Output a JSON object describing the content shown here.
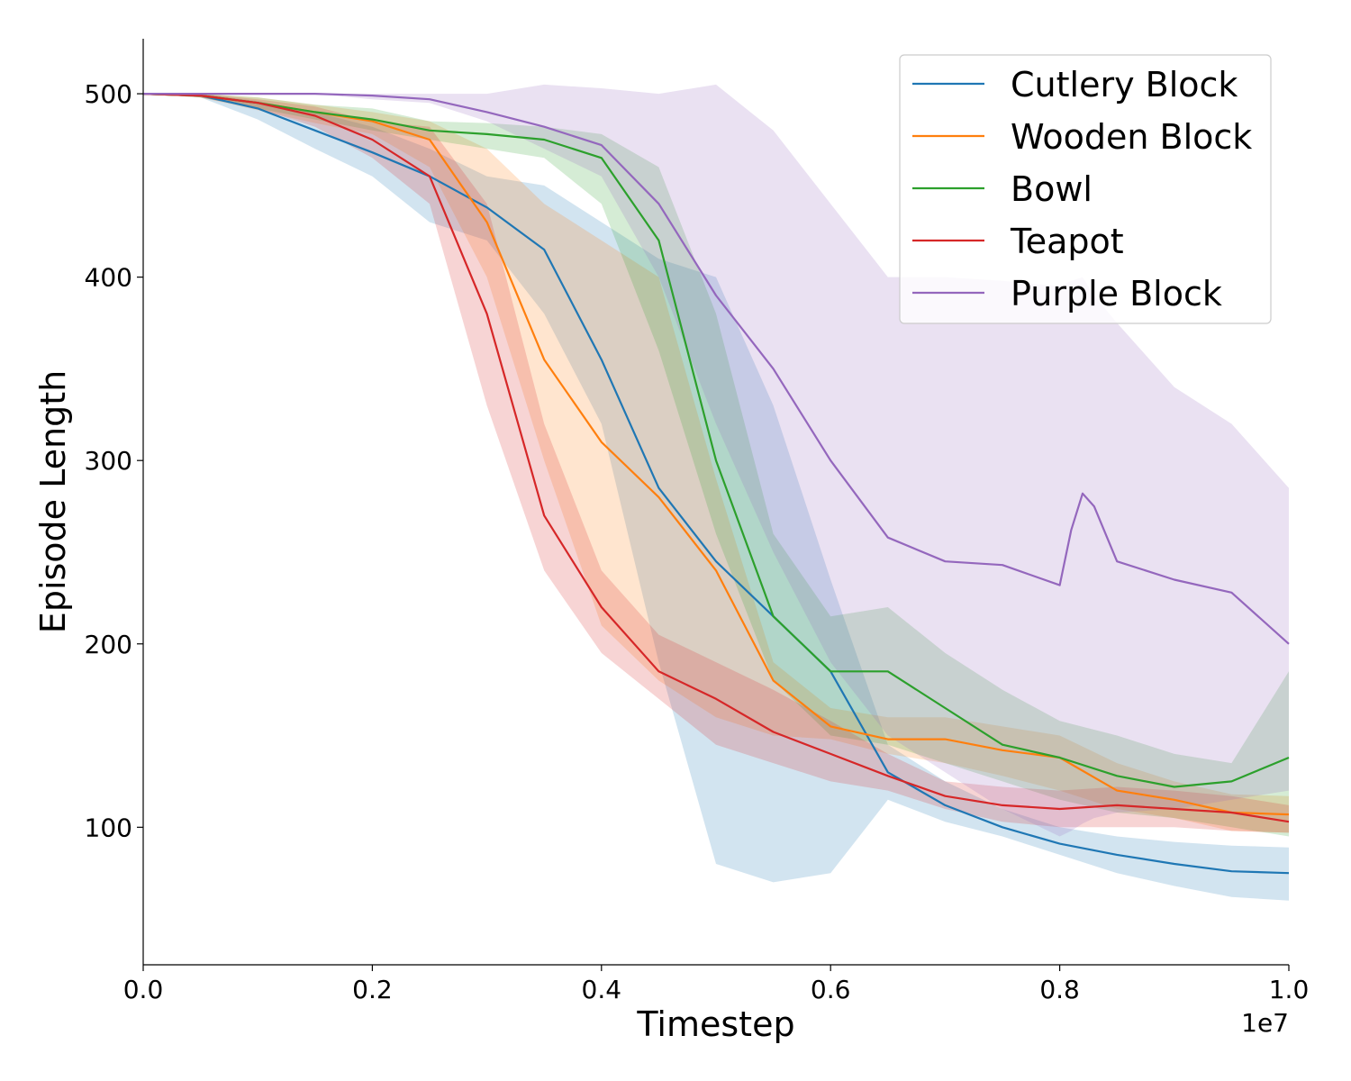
{
  "chart_data": {
    "type": "line",
    "title": "",
    "xlabel": "Timestep",
    "ylabel": "Episode Length",
    "x_offset_label": "1e7",
    "xlim": [
      0.0,
      1.0
    ],
    "ylim": [
      25,
      530
    ],
    "x_ticks": [
      "0.0",
      "0.2",
      "0.4",
      "0.6",
      "0.8",
      "1.0"
    ],
    "y_ticks": [
      "100",
      "200",
      "300",
      "400",
      "500"
    ],
    "grid": false,
    "legend_position": "top-right",
    "shaded_band": true,
    "series": [
      {
        "name": "Cutlery Block",
        "color": "#1f77b4",
        "x": [
          0.0,
          0.05,
          0.1,
          0.15,
          0.2,
          0.25,
          0.3,
          0.35,
          0.4,
          0.45,
          0.5,
          0.55,
          0.6,
          0.65,
          0.7,
          0.75,
          0.8,
          0.85,
          0.9,
          0.95,
          1.0
        ],
        "mean": [
          500,
          499,
          492,
          480,
          468,
          455,
          438,
          415,
          355,
          285,
          245,
          215,
          185,
          130,
          112,
          100,
          91,
          85,
          80,
          76,
          75
        ],
        "lower": [
          500,
          498,
          486,
          470,
          455,
          430,
          420,
          380,
          320,
          190,
          80,
          70,
          75,
          115,
          103,
          95,
          85,
          75,
          68,
          62,
          60
        ],
        "upper": [
          500,
          500,
          496,
          490,
          482,
          470,
          455,
          450,
          430,
          410,
          400,
          330,
          235,
          145,
          125,
          110,
          100,
          95,
          92,
          90,
          89
        ]
      },
      {
        "name": "Wooden Block",
        "color": "#ff7f0e",
        "x": [
          0.0,
          0.05,
          0.1,
          0.15,
          0.2,
          0.25,
          0.3,
          0.35,
          0.4,
          0.45,
          0.5,
          0.55,
          0.6,
          0.65,
          0.7,
          0.75,
          0.8,
          0.85,
          0.9,
          0.95,
          1.0
        ],
        "mean": [
          500,
          499,
          495,
          490,
          485,
          475,
          430,
          355,
          310,
          280,
          240,
          180,
          155,
          148,
          148,
          142,
          138,
          120,
          115,
          108,
          107
        ],
        "lower": [
          500,
          498,
          491,
          484,
          478,
          460,
          400,
          300,
          210,
          180,
          160,
          150,
          148,
          140,
          135,
          128,
          120,
          110,
          105,
          98,
          97
        ],
        "upper": [
          500,
          500,
          498,
          494,
          490,
          485,
          470,
          440,
          420,
          400,
          290,
          190,
          165,
          160,
          160,
          155,
          150,
          135,
          125,
          118,
          117
        ]
      },
      {
        "name": "Bowl",
        "color": "#2ca02c",
        "x": [
          0.0,
          0.05,
          0.1,
          0.15,
          0.2,
          0.25,
          0.3,
          0.35,
          0.4,
          0.45,
          0.5,
          0.55,
          0.6,
          0.65,
          0.7,
          0.75,
          0.8,
          0.85,
          0.9,
          0.95,
          1.0
        ],
        "mean": [
          500,
          499,
          495,
          490,
          486,
          480,
          478,
          475,
          465,
          420,
          300,
          215,
          185,
          185,
          165,
          145,
          138,
          128,
          122,
          125,
          138
        ],
        "lower": [
          500,
          498,
          492,
          486,
          480,
          475,
          470,
          465,
          440,
          360,
          260,
          180,
          150,
          145,
          135,
          125,
          115,
          108,
          105,
          100,
          95
        ],
        "upper": [
          500,
          500,
          498,
          494,
          492,
          485,
          484,
          482,
          478,
          460,
          380,
          260,
          215,
          220,
          195,
          175,
          158,
          150,
          140,
          135,
          185
        ]
      },
      {
        "name": "Teapot",
        "color": "#d62728",
        "x": [
          0.0,
          0.05,
          0.1,
          0.15,
          0.2,
          0.25,
          0.3,
          0.35,
          0.4,
          0.45,
          0.5,
          0.55,
          0.6,
          0.65,
          0.7,
          0.75,
          0.8,
          0.85,
          0.9,
          0.95,
          1.0
        ],
        "mean": [
          500,
          499,
          495,
          488,
          475,
          455,
          380,
          270,
          220,
          185,
          170,
          152,
          140,
          128,
          117,
          112,
          110,
          112,
          110,
          108,
          103
        ],
        "lower": [
          500,
          498,
          492,
          482,
          465,
          440,
          330,
          240,
          195,
          170,
          145,
          135,
          125,
          120,
          110,
          103,
          100,
          100,
          100,
          98,
          97
        ],
        "upper": [
          500,
          500,
          497,
          493,
          485,
          482,
          440,
          320,
          240,
          205,
          190,
          175,
          158,
          140,
          125,
          122,
          120,
          122,
          120,
          117,
          112
        ]
      },
      {
        "name": "Purple Block",
        "color": "#9467bd",
        "x": [
          0.0,
          0.05,
          0.1,
          0.15,
          0.2,
          0.25,
          0.3,
          0.35,
          0.4,
          0.45,
          0.5,
          0.55,
          0.6,
          0.65,
          0.7,
          0.75,
          0.8,
          0.81,
          0.82,
          0.83,
          0.85,
          0.9,
          0.95,
          1.0
        ],
        "mean": [
          500,
          500,
          500,
          500,
          499,
          497,
          490,
          482,
          472,
          440,
          390,
          350,
          300,
          258,
          245,
          243,
          232,
          262,
          282,
          275,
          245,
          235,
          228,
          200
        ],
        "lower": [
          500,
          500,
          500,
          500,
          497,
          495,
          485,
          470,
          455,
          400,
          320,
          250,
          190,
          150,
          130,
          110,
          95,
          98,
          102,
          105,
          108,
          110,
          115,
          120
        ],
        "upper": [
          500,
          500,
          500,
          500,
          500,
          500,
          500,
          505,
          503,
          500,
          505,
          480,
          440,
          400,
          400,
          398,
          395,
          398,
          400,
          390,
          375,
          340,
          320,
          285
        ]
      }
    ]
  }
}
